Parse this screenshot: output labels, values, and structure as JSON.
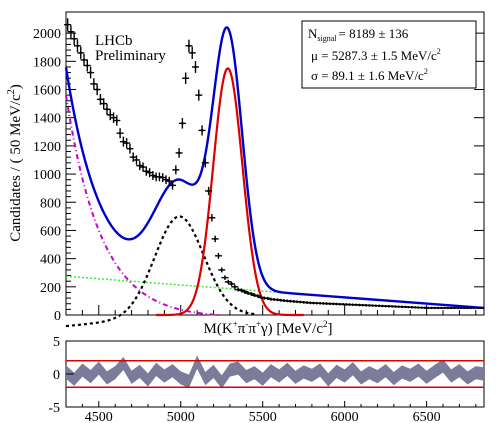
{
  "chart_data": [
    {
      "type": "line",
      "title": "",
      "xlabel_main": "M(K",
      "xlabel_sup1": "+",
      "xlabel_mid1": "π",
      "xlabel_sup2": "-",
      "xlabel_mid2": "π",
      "xlabel_sup3": "+",
      "xlabel_mid3": "γ) [MeV/c",
      "xlabel_sup4": "2",
      "xlabel_end": "]",
      "ylabel_main": "Candidates / ( 50 MeV/c",
      "ylabel_sup": "2",
      "ylabel_end": ")",
      "xlim": [
        4300,
        6850
      ],
      "ylim": [
        0,
        2150
      ],
      "yticks": [
        "0",
        "200",
        "400",
        "600",
        "800",
        "1000",
        "1200",
        "1400",
        "1600",
        "1800",
        "2000"
      ],
      "annotation_line1": "LHCb",
      "annotation_line2": "Preliminary",
      "stats": {
        "nsignal_label": "N",
        "nsignal_sub": "signal",
        "nsignal_value": "=  8189 ± 136",
        "mu_text": "μ =  5287.3 ± 1.5 MeV/c",
        "mu_sup": "2",
        "sigma_text": "σ =  89.1 ± 1.6 MeV/c",
        "sigma_sup": "2"
      },
      "series_colors": {
        "data": "#000000",
        "total": "#0000cc",
        "signal": "#dd0000",
        "partially_reconstructed": "#000000",
        "peaking_background": "#cc00cc",
        "combinatorial": "#33ee33"
      },
      "data_points": {
        "x": [
          4310,
          4330,
          4350,
          4370,
          4390,
          4410,
          4430,
          4450,
          4470,
          4490,
          4510,
          4530,
          4550,
          4570,
          4590,
          4610,
          4630,
          4650,
          4670,
          4690,
          4710,
          4730,
          4750,
          4770,
          4790,
          4810,
          4830,
          4850,
          4870,
          4890,
          4910,
          4930,
          4950,
          4970,
          4990,
          5010,
          5030,
          5050,
          5070,
          5090,
          5110,
          5130,
          5150,
          5170,
          5190,
          5210,
          5230,
          5250,
          5270,
          5290,
          5310,
          5330,
          5350,
          5370,
          5390,
          5410,
          5430,
          5450,
          5470,
          5490,
          5510,
          5530,
          5550,
          5570,
          5590,
          5610,
          5630,
          5650,
          5670,
          5690,
          5710,
          5730,
          5750,
          5770,
          5790,
          5810,
          5830,
          5850,
          5870,
          5890,
          5910,
          5930,
          5950,
          5970,
          5990,
          6010,
          6030,
          6050,
          6070,
          6090,
          6110,
          6130,
          6150,
          6170,
          6190,
          6210,
          6230,
          6250,
          6270,
          6290,
          6310,
          6330,
          6350,
          6370,
          6390,
          6410,
          6430,
          6450,
          6470,
          6490,
          6510,
          6530,
          6550,
          6570,
          6590,
          6610,
          6630,
          6650,
          6670,
          6690,
          6710,
          6730,
          6750,
          6770,
          6790,
          6810,
          6830
        ],
        "y": [
          2060,
          2010,
          1960,
          1910,
          1860,
          1810,
          1770,
          1720,
          1640,
          1600,
          1530,
          1500,
          1460,
          1420,
          1400,
          1380,
          1290,
          1230,
          1220,
          1180,
          1120,
          1100,
          1060,
          1050,
          1020,
          1010,
          990,
          980,
          980,
          975,
          960,
          950,
          920,
          1030,
          1150,
          1360,
          1680,
          1910,
          1860,
          1760,
          1560,
          1310,
          1080,
          880,
          690,
          540,
          420,
          320,
          265,
          235,
          220,
          200,
          180,
          175,
          165,
          155,
          150,
          140,
          135,
          125,
          120,
          118,
          112,
          110,
          108,
          105,
          102,
          100,
          98,
          96,
          94,
          92,
          90,
          88,
          86,
          85,
          84,
          83,
          82,
          81,
          80,
          79,
          78,
          77,
          76,
          75,
          74,
          73,
          72,
          71,
          70,
          69,
          68,
          67,
          66,
          65,
          64,
          63,
          62,
          61,
          60,
          59,
          58,
          57,
          56,
          55,
          54,
          53,
          52,
          51,
          50,
          50,
          50,
          50,
          50,
          50,
          50,
          50,
          50,
          50,
          50,
          50,
          50,
          50,
          50,
          50,
          50
        ]
      },
      "legend": "none"
    },
    {
      "type": "area",
      "xlim": [
        4300,
        6850
      ],
      "ylim": [
        -5,
        5
      ],
      "yticks": [
        "5",
        "0",
        "-5"
      ],
      "xticks": [
        "4500",
        "5000",
        "5500",
        "6000",
        "6500"
      ],
      "reference_lines": [
        2,
        -2
      ],
      "reference_line_color": "#dd0000",
      "band_color": "#7a7c9a",
      "pull_x": [
        4300,
        4350,
        4400,
        4450,
        4500,
        4550,
        4600,
        4650,
        4700,
        4750,
        4800,
        4850,
        4900,
        4950,
        5000,
        5050,
        5100,
        5150,
        5200,
        5250,
        5300,
        5350,
        5400,
        5450,
        5500,
        5550,
        5600,
        5650,
        5700,
        5750,
        5800,
        5850,
        5900,
        5950,
        6000,
        6050,
        6100,
        6150,
        6200,
        6250,
        6300,
        6350,
        6400,
        6450,
        6500,
        6550,
        6600,
        6650,
        6700,
        6750,
        6800,
        6850
      ],
      "pull_y": [
        0.3,
        -0.8,
        0.6,
        -0.4,
        0.9,
        -0.6,
        0.2,
        1.6,
        -0.5,
        0.4,
        -0.9,
        0.7,
        -0.3,
        0.5,
        -0.6,
        -1.1,
        1.8,
        -0.7,
        0.4,
        -1.2,
        0.6,
        0.9,
        -0.4,
        0.2,
        -0.8,
        0.5,
        -0.3,
        0.7,
        -0.5,
        0.3,
        -0.2,
        0.6,
        -0.9,
        0.4,
        -0.3,
        0.8,
        -0.6,
        0.2,
        -0.4,
        0.5,
        -0.7,
        0.3,
        -0.2,
        0.6,
        -0.5,
        0.4,
        1.2,
        -0.3,
        0.5,
        -0.6,
        0.2,
        0.0
      ]
    }
  ]
}
